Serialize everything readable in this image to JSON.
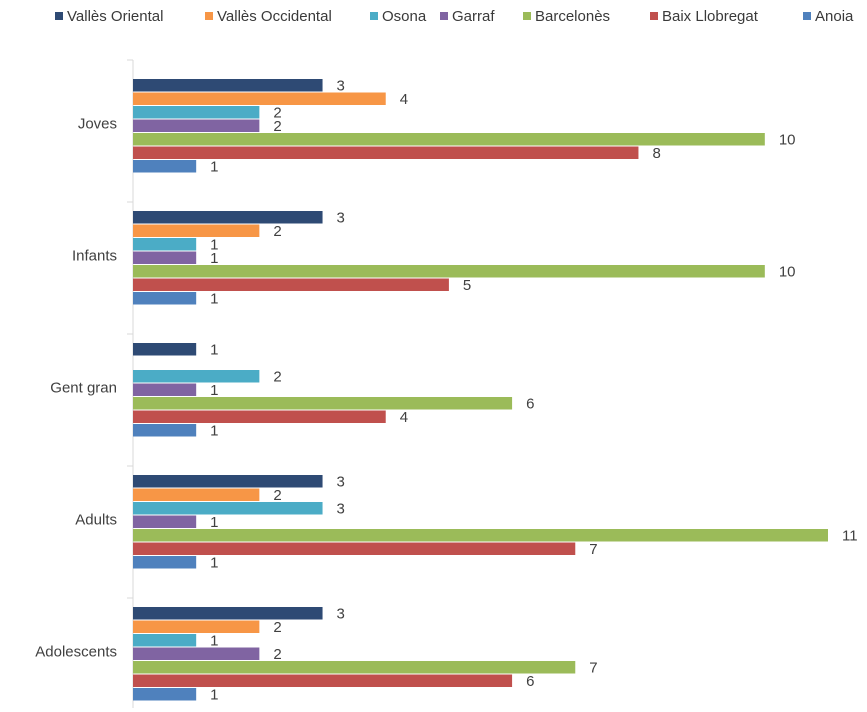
{
  "chart_data": {
    "type": "bar",
    "orientation": "horizontal",
    "legend_position": "top",
    "grid": false,
    "xlim": [
      0,
      11
    ],
    "categories": [
      "Joves",
      "Infants",
      "Gent gran",
      "Adults",
      "Adolescents"
    ],
    "series": [
      {
        "name": "Vallès Oriental",
        "color": "#2e4a74",
        "values": [
          3,
          3,
          1,
          3,
          3
        ]
      },
      {
        "name": "Vallès Occidental",
        "color": "#f79646",
        "values": [
          4,
          2,
          0,
          2,
          2
        ]
      },
      {
        "name": "Osona",
        "color": "#4bacc6",
        "values": [
          2,
          1,
          2,
          3,
          1
        ]
      },
      {
        "name": "Garraf",
        "color": "#8064a2",
        "values": [
          2,
          1,
          1,
          1,
          2
        ]
      },
      {
        "name": "Barcelonès",
        "color": "#9bbb59",
        "values": [
          10,
          10,
          6,
          11,
          7
        ]
      },
      {
        "name": "Baix Llobregat",
        "color": "#c0504d",
        "values": [
          8,
          5,
          4,
          7,
          6
        ]
      },
      {
        "name": "Anoia",
        "color": "#4f81bd",
        "values": [
          1,
          1,
          1,
          1,
          1
        ]
      }
    ]
  }
}
